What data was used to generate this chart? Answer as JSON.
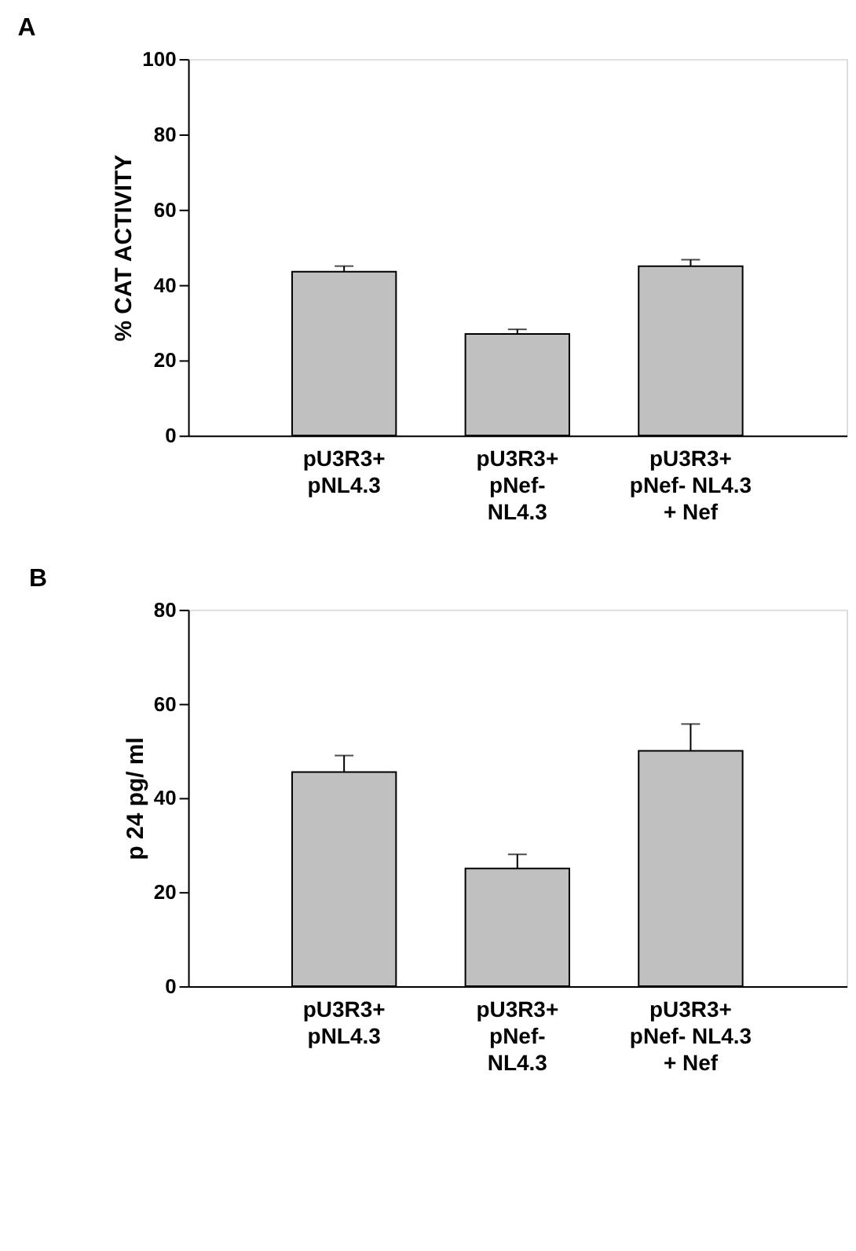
{
  "chart_data": [
    {
      "type": "bar",
      "title": "A",
      "ylabel": "% CAT ACTIVITY",
      "categories": [
        "pU3R3+\npNL4.3",
        "pU3R3+\npNef-\nNL4.3",
        "pU3R3+\npNef- NL4.3\n+ Nef"
      ],
      "values": [
        43.5,
        27,
        45
      ],
      "errors": [
        1.5,
        1.2,
        1.7
      ],
      "color": "#c0c0c0",
      "ylim": [
        0,
        100
      ],
      "yticks": [
        0,
        20,
        40,
        60,
        80,
        100
      ],
      "grid": false
    },
    {
      "type": "bar",
      "title": "B",
      "ylabel": "p 24 pg/ ml",
      "categories": [
        "pU3R3+\npNL4.3",
        "pU3R3+\npNef-\nNL4.3",
        "pU3R3+\npNef- NL4.3\n+ Nef"
      ],
      "values": [
        45.5,
        25,
        50
      ],
      "errors": [
        3.5,
        3,
        5.7
      ],
      "color": "#c0c0c0",
      "ylim": [
        0,
        80
      ],
      "yticks": [
        0,
        20,
        40,
        60,
        80
      ],
      "grid": false
    }
  ]
}
